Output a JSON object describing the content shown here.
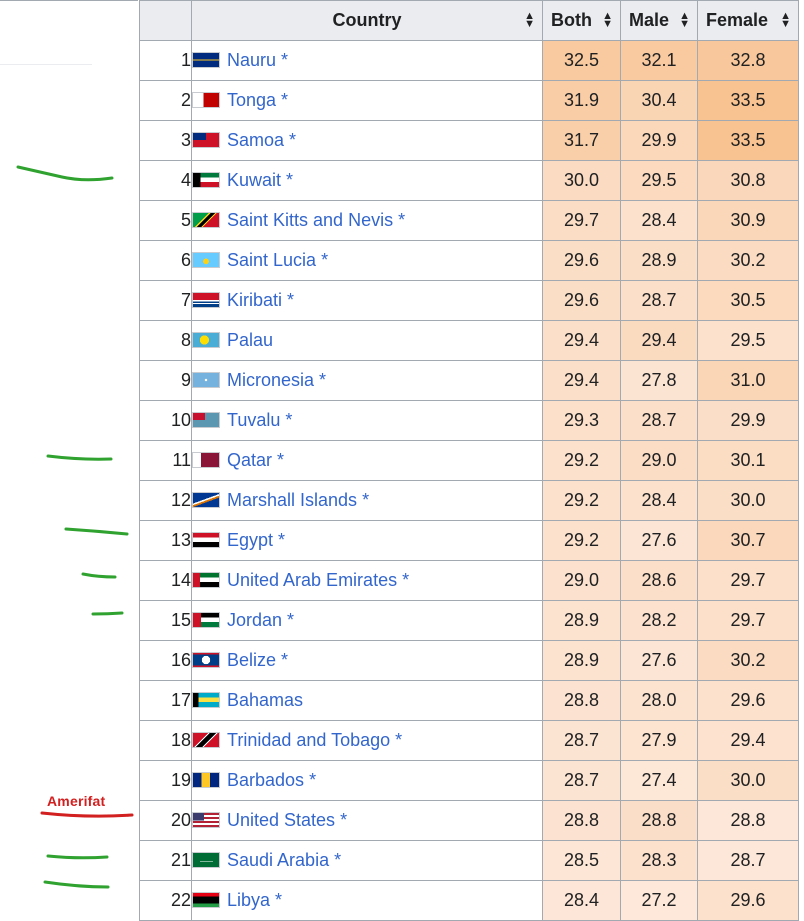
{
  "annotation": {
    "text": "Amerifat"
  },
  "table": {
    "headers": [
      {
        "label": ""
      },
      {
        "label": "Country"
      },
      {
        "label": "Both"
      },
      {
        "label": "Male"
      },
      {
        "label": "Female"
      }
    ],
    "sort_icon": "sort-arrows-icon",
    "rows": [
      {
        "rank": "1",
        "country": "Nauru",
        "star": "*",
        "both": "32.5",
        "male": "32.1",
        "female": "32.8",
        "flag": "nauru-flag-icon"
      },
      {
        "rank": "2",
        "country": "Tonga",
        "star": "*",
        "both": "31.9",
        "male": "30.4",
        "female": "33.5",
        "flag": "tonga-flag-icon"
      },
      {
        "rank": "3",
        "country": "Samoa",
        "star": "*",
        "both": "31.7",
        "male": "29.9",
        "female": "33.5",
        "flag": "samoa-flag-icon"
      },
      {
        "rank": "4",
        "country": "Kuwait",
        "star": "*",
        "both": "30.0",
        "male": "29.5",
        "female": "30.8",
        "flag": "kuwait-flag-icon"
      },
      {
        "rank": "5",
        "country": "Saint Kitts and Nevis",
        "star": "*",
        "both": "29.7",
        "male": "28.4",
        "female": "30.9",
        "flag": "saint-kitts-flag-icon"
      },
      {
        "rank": "6",
        "country": "Saint Lucia",
        "star": "*",
        "both": "29.6",
        "male": "28.9",
        "female": "30.2",
        "flag": "saint-lucia-flag-icon"
      },
      {
        "rank": "7",
        "country": "Kiribati",
        "star": "*",
        "both": "29.6",
        "male": "28.7",
        "female": "30.5",
        "flag": "kiribati-flag-icon"
      },
      {
        "rank": "8",
        "country": "Palau",
        "star": "",
        "both": "29.4",
        "male": "29.4",
        "female": "29.5",
        "flag": "palau-flag-icon"
      },
      {
        "rank": "9",
        "country": "Micronesia",
        "star": "*",
        "both": "29.4",
        "male": "27.8",
        "female": "31.0",
        "flag": "micronesia-flag-icon"
      },
      {
        "rank": "10",
        "country": "Tuvalu",
        "star": "*",
        "both": "29.3",
        "male": "28.7",
        "female": "29.9",
        "flag": "tuvalu-flag-icon"
      },
      {
        "rank": "11",
        "country": "Qatar",
        "star": "*",
        "both": "29.2",
        "male": "29.0",
        "female": "30.1",
        "flag": "qatar-flag-icon"
      },
      {
        "rank": "12",
        "country": "Marshall Islands",
        "star": "*",
        "both": "29.2",
        "male": "28.4",
        "female": "30.0",
        "flag": "marshall-islands-flag-icon"
      },
      {
        "rank": "13",
        "country": "Egypt",
        "star": "*",
        "both": "29.2",
        "male": "27.6",
        "female": "30.7",
        "flag": "egypt-flag-icon"
      },
      {
        "rank": "14",
        "country": "United Arab Emirates",
        "star": "*",
        "both": "29.0",
        "male": "28.6",
        "female": "29.7",
        "flag": "uae-flag-icon"
      },
      {
        "rank": "15",
        "country": "Jordan",
        "star": "*",
        "both": "28.9",
        "male": "28.2",
        "female": "29.7",
        "flag": "jordan-flag-icon"
      },
      {
        "rank": "16",
        "country": "Belize",
        "star": "*",
        "both": "28.9",
        "male": "27.6",
        "female": "30.2",
        "flag": "belize-flag-icon"
      },
      {
        "rank": "17",
        "country": "Bahamas",
        "star": "",
        "both": "28.8",
        "male": "28.0",
        "female": "29.6",
        "flag": "bahamas-flag-icon"
      },
      {
        "rank": "18",
        "country": "Trinidad and Tobago",
        "star": "*",
        "both": "28.7",
        "male": "27.9",
        "female": "29.4",
        "flag": "trinidad-flag-icon"
      },
      {
        "rank": "19",
        "country": "Barbados",
        "star": "*",
        "both": "28.7",
        "male": "27.4",
        "female": "30.0",
        "flag": "barbados-flag-icon"
      },
      {
        "rank": "20",
        "country": "United States",
        "star": "*",
        "both": "28.8",
        "male": "28.8",
        "female": "28.8",
        "flag": "us-flag-icon"
      },
      {
        "rank": "21",
        "country": "Saudi Arabia",
        "star": "*",
        "both": "28.5",
        "male": "28.3",
        "female": "28.7",
        "flag": "saudi-arabia-flag-icon"
      },
      {
        "rank": "22",
        "country": "Libya",
        "star": "*",
        "both": "28.4",
        "male": "27.2",
        "female": "29.6",
        "flag": "libya-flag-icon"
      }
    ]
  },
  "colors": {
    "link": "#3366cc",
    "header_bg": "#eaecf0",
    "border": "#a2a9b1",
    "heat_low": "#fde9dc",
    "heat_high": "#f7bf8a",
    "marker_green": "#2fa22f",
    "annotation_red": "#d21f1f"
  }
}
